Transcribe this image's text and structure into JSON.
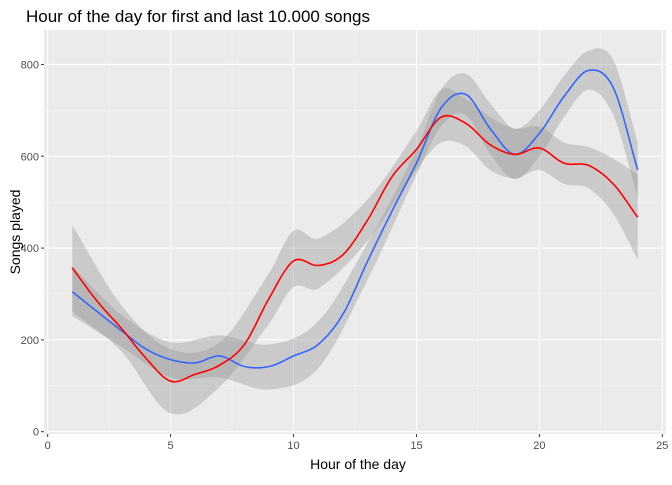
{
  "chart_data": {
    "type": "line",
    "title": "Hour of the day for first and last 10.000 songs",
    "xlabel": "Hour of the day",
    "ylabel": "Songs played",
    "xlim": [
      -0.15,
      25.15
    ],
    "ylim": [
      -5,
      875
    ],
    "x_ticks": [
      0,
      5,
      10,
      15,
      20,
      25
    ],
    "y_ticks": [
      0,
      200,
      400,
      600,
      800
    ],
    "grid": true,
    "legend": "none",
    "colors": {
      "panel": "#ebebeb",
      "grid_major": "#ffffff",
      "grid_minor": "#f5f5f5",
      "band": "#999999"
    },
    "series": [
      {
        "color": "#3366ff",
        "points": [
          [
            1,
            305
          ],
          [
            2,
            262
          ],
          [
            3,
            220
          ],
          [
            4,
            180
          ],
          [
            5,
            157
          ],
          [
            6,
            150
          ],
          [
            7,
            165
          ],
          [
            8,
            142
          ],
          [
            9,
            142
          ],
          [
            10,
            165
          ],
          [
            11,
            190
          ],
          [
            12,
            255
          ],
          [
            13,
            370
          ],
          [
            14,
            480
          ],
          [
            15,
            585
          ],
          [
            16,
            705
          ],
          [
            17,
            735
          ],
          [
            18,
            660
          ],
          [
            19,
            604
          ],
          [
            20,
            650
          ],
          [
            21,
            730
          ],
          [
            22,
            787
          ],
          [
            23,
            750
          ],
          [
            24,
            570
          ]
        ],
        "band_upper": [
          [
            1,
            360
          ],
          [
            3,
            255
          ],
          [
            5,
            195
          ],
          [
            7,
            210
          ],
          [
            9,
            190
          ],
          [
            11,
            240
          ],
          [
            13,
            410
          ],
          [
            15,
            615
          ],
          [
            16,
            745
          ],
          [
            17,
            780
          ],
          [
            18,
            715
          ],
          [
            19,
            660
          ],
          [
            20,
            700
          ],
          [
            21,
            775
          ],
          [
            22,
            830
          ],
          [
            23,
            810
          ],
          [
            24,
            630
          ]
        ],
        "band_lower": [
          [
            1,
            252
          ],
          [
            3,
            185
          ],
          [
            5,
            118
          ],
          [
            7,
            118
          ],
          [
            9,
            92
          ],
          [
            11,
            138
          ],
          [
            13,
            330
          ],
          [
            15,
            560
          ],
          [
            16,
            665
          ],
          [
            17,
            690
          ],
          [
            18,
            605
          ],
          [
            19,
            550
          ],
          [
            20,
            600
          ],
          [
            21,
            685
          ],
          [
            22,
            745
          ],
          [
            23,
            690
          ],
          [
            24,
            510
          ]
        ]
      },
      {
        "color": "#ff0000",
        "points": [
          [
            1,
            357
          ],
          [
            2,
            285
          ],
          [
            3,
            225
          ],
          [
            4,
            160
          ],
          [
            5,
            110
          ],
          [
            6,
            125
          ],
          [
            7,
            145
          ],
          [
            8,
            190
          ],
          [
            9,
            290
          ],
          [
            10,
            372
          ],
          [
            11,
            362
          ],
          [
            12,
            385
          ],
          [
            13,
            460
          ],
          [
            14,
            555
          ],
          [
            15,
            615
          ],
          [
            16,
            685
          ],
          [
            17,
            672
          ],
          [
            18,
            625
          ],
          [
            19,
            604
          ],
          [
            20,
            618
          ],
          [
            21,
            585
          ],
          [
            22,
            580
          ],
          [
            23,
            540
          ],
          [
            24,
            467
          ]
        ],
        "band_upper": [
          [
            1,
            450
          ],
          [
            3,
            275
          ],
          [
            5,
            180
          ],
          [
            7,
            195
          ],
          [
            9,
            345
          ],
          [
            10,
            438
          ],
          [
            11,
            420
          ],
          [
            13,
            505
          ],
          [
            15,
            655
          ],
          [
            16,
            745
          ],
          [
            17,
            725
          ],
          [
            18,
            685
          ],
          [
            19,
            660
          ],
          [
            20,
            665
          ],
          [
            21,
            630
          ],
          [
            22,
            620
          ],
          [
            23,
            595
          ],
          [
            24,
            560
          ]
        ],
        "band_lower": [
          [
            1,
            262
          ],
          [
            3,
            175
          ],
          [
            5,
            40
          ],
          [
            7,
            98
          ],
          [
            9,
            235
          ],
          [
            10,
            315
          ],
          [
            11,
            312
          ],
          [
            13,
            415
          ],
          [
            15,
            570
          ],
          [
            16,
            630
          ],
          [
            17,
            622
          ],
          [
            18,
            570
          ],
          [
            19,
            552
          ],
          [
            20,
            570
          ],
          [
            21,
            540
          ],
          [
            22,
            530
          ],
          [
            23,
            475
          ],
          [
            24,
            375
          ]
        ]
      }
    ]
  }
}
